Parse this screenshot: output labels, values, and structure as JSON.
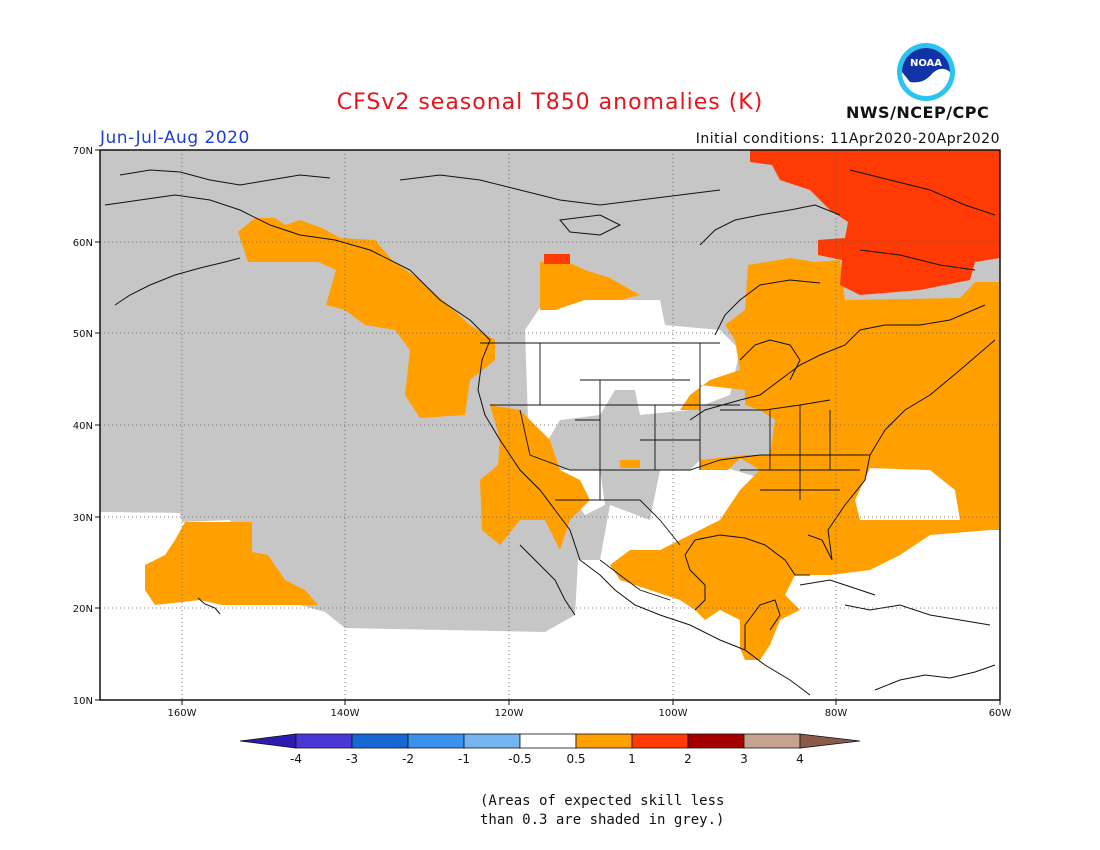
{
  "header": {
    "title": "CFSv2 seasonal T850 anomalies (K)",
    "season": "Jun-Jul-Aug 2020",
    "initial_conditions": "Initial conditions: 11Apr2020-20Apr2020",
    "org": "NWS/NCEP/CPC",
    "logo_text": "NOAA"
  },
  "map": {
    "lon_ticks": [
      "160W",
      "140W",
      "120W",
      "100W",
      "80W",
      "60W"
    ],
    "lat_ticks": [
      "70N",
      "60N",
      "50N",
      "40N",
      "30N",
      "20N",
      "10N"
    ]
  },
  "colors": {
    "grey": "#c6c6c6",
    "orange": "#ffa000",
    "red": "#ff3a05",
    "lightblue": "#74b4f0",
    "blue1": "#3a92ec",
    "blue2": "#1668d4",
    "blue3": "#4a38d6",
    "blue4": "#2d1ab0",
    "darkred": "#a50000",
    "tan": "#c8a290",
    "brown": "#8c5a4a"
  },
  "colorbar": {
    "labels": [
      "-4",
      "-3",
      "-2",
      "-1",
      "-0.5",
      "0.5",
      "1",
      "2",
      "3",
      "4"
    ]
  },
  "footnote": {
    "line1": "(Areas of expected skill less",
    "line2": "than 0.3 are shaded in grey.)"
  }
}
